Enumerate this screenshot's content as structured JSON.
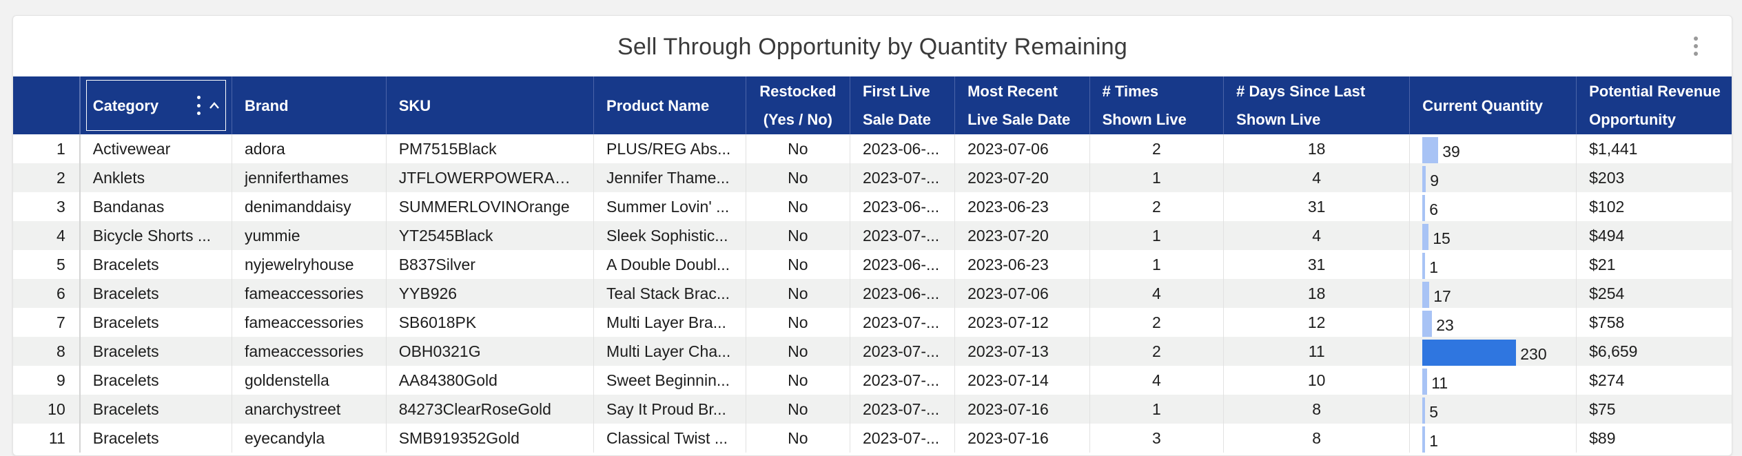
{
  "title": "Sell Through Opportunity by Quantity Remaining",
  "colors": {
    "header_bg": "#17398a",
    "bar_light": "#a8c3f5",
    "bar_dark": "#2f76e0"
  },
  "icons": {
    "menu": "more-vertical-icon",
    "sort": "chevron-up-icon"
  },
  "columns": [
    {
      "label": ""
    },
    {
      "label": "Category"
    },
    {
      "label": "Brand"
    },
    {
      "label": "SKU"
    },
    {
      "label": "Product Name"
    },
    {
      "line1": "Restocked",
      "line2": "(Yes / No)"
    },
    {
      "line1": "First Live",
      "line2": "Sale Date"
    },
    {
      "line1": "Most Recent",
      "line2": "Live Sale Date"
    },
    {
      "line1": "# Times",
      "line2": "Shown Live"
    },
    {
      "line1": "# Days Since Last",
      "line2": "Shown Live"
    },
    {
      "label": "Current Quantity"
    },
    {
      "line1": "Potential Revenue",
      "line2": "Opportunity"
    }
  ],
  "max_quantity": 230,
  "rows": [
    {
      "n": "1",
      "category": "Activewear",
      "brand": "adora",
      "sku": "PM7515Black",
      "product": "PLUS/REG Abs...",
      "restocked": "No",
      "first": "2023-06-...",
      "recent": "2023-07-06",
      "times": "2",
      "days": "18",
      "qty": 39,
      "qty_label": "39",
      "revenue": "$1,441"
    },
    {
      "n": "2",
      "category": "Anklets",
      "brand": "jenniferthames",
      "sku": "JTFLOWERPOWERANKLET",
      "product": "Jennifer Thame...",
      "restocked": "No",
      "first": "2023-07-...",
      "recent": "2023-07-20",
      "times": "1",
      "days": "4",
      "qty": 9,
      "qty_label": "9",
      "revenue": "$203"
    },
    {
      "n": "3",
      "category": "Bandanas",
      "brand": "denimanddaisy",
      "sku": "SUMMERLOVINOrange",
      "product": "Summer Lovin' ...",
      "restocked": "No",
      "first": "2023-06-...",
      "recent": "2023-06-23",
      "times": "2",
      "days": "31",
      "qty": 6,
      "qty_label": "6",
      "revenue": "$102"
    },
    {
      "n": "4",
      "category": "Bicycle Shorts ...",
      "brand": "yummie",
      "sku": "YT2545Black",
      "product": "Sleek Sophistic...",
      "restocked": "No",
      "first": "2023-07-...",
      "recent": "2023-07-20",
      "times": "1",
      "days": "4",
      "qty": 15,
      "qty_label": "15",
      "revenue": "$494"
    },
    {
      "n": "5",
      "category": "Bracelets",
      "brand": "nyjewelryhouse",
      "sku": "B837Silver",
      "product": "A Double Doubl...",
      "restocked": "No",
      "first": "2023-06-...",
      "recent": "2023-06-23",
      "times": "1",
      "days": "31",
      "qty": 1,
      "qty_label": "1",
      "revenue": "$21"
    },
    {
      "n": "6",
      "category": "Bracelets",
      "brand": "fameaccessories",
      "sku": "YYB926",
      "product": "Teal Stack Brac...",
      "restocked": "No",
      "first": "2023-06-...",
      "recent": "2023-07-06",
      "times": "4",
      "days": "18",
      "qty": 17,
      "qty_label": "17",
      "revenue": "$254"
    },
    {
      "n": "7",
      "category": "Bracelets",
      "brand": "fameaccessories",
      "sku": "SB6018PK",
      "product": "Multi Layer Bra...",
      "restocked": "No",
      "first": "2023-07-...",
      "recent": "2023-07-12",
      "times": "2",
      "days": "12",
      "qty": 23,
      "qty_label": "23",
      "revenue": "$758"
    },
    {
      "n": "8",
      "category": "Bracelets",
      "brand": "fameaccessories",
      "sku": "OBH0321G",
      "product": "Multi Layer Cha...",
      "restocked": "No",
      "first": "2023-07-...",
      "recent": "2023-07-13",
      "times": "2",
      "days": "11",
      "qty": 230,
      "qty_label": "230",
      "revenue": "$6,659"
    },
    {
      "n": "9",
      "category": "Bracelets",
      "brand": "goldenstella",
      "sku": "AA84380Gold",
      "product": "Sweet Beginnin...",
      "restocked": "No",
      "first": "2023-07-...",
      "recent": "2023-07-14",
      "times": "4",
      "days": "10",
      "qty": 11,
      "qty_label": "11",
      "revenue": "$274"
    },
    {
      "n": "10",
      "category": "Bracelets",
      "brand": "anarchystreet",
      "sku": "84273ClearRoseGold",
      "product": "Say It Proud Br...",
      "restocked": "No",
      "first": "2023-07-...",
      "recent": "2023-07-16",
      "times": "1",
      "days": "8",
      "qty": 5,
      "qty_label": "5",
      "revenue": "$75"
    },
    {
      "n": "11",
      "category": "Bracelets",
      "brand": "eyecandyla",
      "sku": "SMB919352Gold",
      "product": "Classical Twist ...",
      "restocked": "No",
      "first": "2023-07-...",
      "recent": "2023-07-16",
      "times": "3",
      "days": "8",
      "qty": 1,
      "qty_label": "1",
      "revenue": "$89"
    }
  ]
}
